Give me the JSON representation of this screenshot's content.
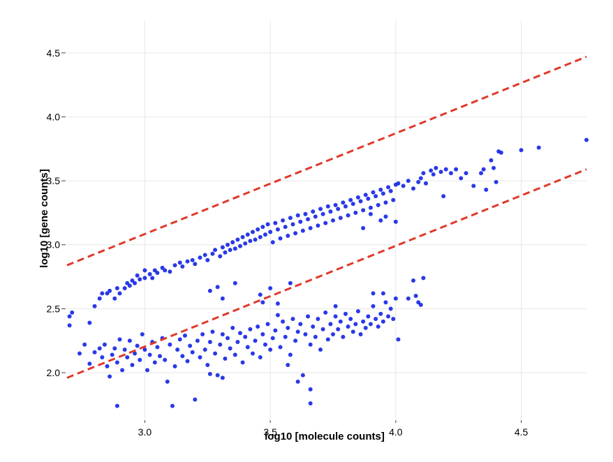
{
  "chart_data": {
    "type": "scatter",
    "title": "",
    "xlabel": "log10 [molecule counts]",
    "ylabel": "log10 [gene counts]",
    "xlim": [
      2.69,
      4.76
    ],
    "ylim": [
      1.64,
      4.75
    ],
    "xticks": [
      3.0,
      3.5,
      4.0,
      4.5
    ],
    "yticks": [
      2.0,
      2.5,
      3.0,
      3.5,
      4.0,
      4.5
    ],
    "xtick_labels": [
      "3.0",
      "3.5",
      "4.0",
      "4.5"
    ],
    "ytick_labels": [
      "2.0",
      "2.5",
      "3.0",
      "3.5",
      "4.0",
      "4.5"
    ],
    "grid": true,
    "legend": "none",
    "point_color": "#1f2ee6",
    "threshold_color": "#e0392b",
    "threshold_lines": [
      {
        "x": [
          2.69,
          4.76
        ],
        "y": [
          2.84,
          4.47
        ]
      },
      {
        "x": [
          2.69,
          4.76
        ],
        "y": [
          1.96,
          3.59
        ]
      }
    ],
    "series": [
      {
        "points_upper": [
          [
            2.7,
            2.44
          ],
          [
            2.71,
            2.47
          ],
          [
            2.78,
            2.39
          ],
          [
            2.8,
            2.52
          ],
          [
            2.82,
            2.58
          ],
          [
            2.83,
            2.62
          ],
          [
            2.85,
            2.62
          ],
          [
            2.86,
            2.64
          ],
          [
            2.88,
            2.58
          ],
          [
            2.89,
            2.66
          ],
          [
            2.9,
            2.62
          ],
          [
            2.92,
            2.66
          ],
          [
            2.93,
            2.7
          ],
          [
            2.94,
            2.68
          ],
          [
            2.95,
            2.72
          ],
          [
            2.96,
            2.7
          ],
          [
            2.97,
            2.76
          ],
          [
            2.98,
            2.73
          ],
          [
            3.0,
            2.74
          ],
          [
            3.0,
            2.8
          ],
          [
            3.02,
            2.77
          ],
          [
            3.03,
            2.74
          ],
          [
            3.04,
            2.8
          ],
          [
            3.05,
            2.78
          ],
          [
            3.07,
            2.82
          ],
          [
            3.08,
            2.8
          ],
          [
            3.1,
            2.79
          ],
          [
            3.12,
            2.84
          ],
          [
            3.14,
            2.86
          ],
          [
            3.15,
            2.83
          ],
          [
            3.17,
            2.87
          ],
          [
            3.19,
            2.88
          ],
          [
            3.2,
            2.85
          ],
          [
            3.22,
            2.9
          ],
          [
            3.24,
            2.92
          ],
          [
            3.25,
            2.88
          ],
          [
            3.27,
            2.93
          ],
          [
            3.28,
            2.96
          ],
          [
            3.3,
            2.91
          ],
          [
            3.31,
            2.98
          ],
          [
            3.32,
            2.94
          ],
          [
            3.33,
            3.0
          ],
          [
            3.34,
            2.96
          ],
          [
            3.35,
            3.02
          ],
          [
            3.36,
            2.97
          ],
          [
            3.37,
            3.04
          ],
          [
            3.38,
            2.99
          ],
          [
            3.39,
            3.06
          ],
          [
            3.4,
            3.01
          ],
          [
            3.41,
            3.08
          ],
          [
            3.42,
            3.03
          ],
          [
            3.43,
            3.1
          ],
          [
            3.44,
            3.04
          ],
          [
            3.45,
            3.12
          ],
          [
            3.46,
            3.06
          ],
          [
            3.47,
            3.14
          ],
          [
            3.48,
            3.08
          ],
          [
            3.49,
            3.16
          ],
          [
            3.5,
            3.1
          ],
          [
            3.51,
            3.02
          ],
          [
            3.52,
            3.17
          ],
          [
            3.53,
            3.12
          ],
          [
            3.54,
            3.05
          ],
          [
            3.55,
            3.19
          ],
          [
            3.56,
            3.14
          ],
          [
            3.57,
            3.07
          ],
          [
            3.58,
            3.21
          ],
          [
            3.59,
            3.16
          ],
          [
            3.6,
            3.09
          ],
          [
            3.61,
            3.23
          ],
          [
            3.62,
            3.18
          ],
          [
            3.63,
            3.11
          ],
          [
            3.64,
            3.24
          ],
          [
            3.65,
            3.2
          ],
          [
            3.66,
            3.13
          ],
          [
            3.67,
            3.26
          ],
          [
            3.68,
            3.22
          ],
          [
            3.69,
            3.15
          ],
          [
            3.7,
            3.28
          ],
          [
            3.71,
            3.24
          ],
          [
            3.72,
            3.17
          ],
          [
            3.73,
            3.3
          ],
          [
            3.74,
            3.26
          ],
          [
            3.75,
            3.19
          ],
          [
            3.76,
            3.31
          ],
          [
            3.77,
            3.28
          ],
          [
            3.78,
            3.21
          ],
          [
            3.79,
            3.33
          ],
          [
            3.8,
            3.3
          ],
          [
            3.81,
            3.23
          ],
          [
            3.82,
            3.35
          ],
          [
            3.83,
            3.32
          ],
          [
            3.84,
            3.25
          ],
          [
            3.85,
            3.37
          ],
          [
            3.86,
            3.34
          ],
          [
            3.87,
            3.27
          ],
          [
            3.88,
            3.39
          ],
          [
            3.89,
            3.36
          ],
          [
            3.9,
            3.29
          ],
          [
            3.91,
            3.41
          ],
          [
            3.92,
            3.38
          ],
          [
            3.93,
            3.31
          ],
          [
            3.94,
            3.43
          ],
          [
            3.95,
            3.4
          ],
          [
            3.96,
            3.33
          ],
          [
            3.97,
            3.45
          ],
          [
            3.98,
            3.42
          ],
          [
            3.99,
            3.35
          ],
          [
            4.0,
            3.47
          ],
          [
            4.01,
            3.48
          ],
          [
            4.0,
            3.18
          ],
          [
            3.96,
            3.22
          ],
          [
            4.03,
            3.46
          ],
          [
            4.05,
            3.5
          ],
          [
            4.07,
            3.44
          ],
          [
            4.09,
            3.49
          ],
          [
            4.1,
            3.52
          ],
          [
            4.11,
            3.56
          ],
          [
            4.12,
            3.48
          ],
          [
            4.14,
            3.58
          ],
          [
            4.15,
            3.55
          ],
          [
            4.16,
            3.6
          ],
          [
            4.18,
            3.57
          ],
          [
            4.2,
            3.59
          ],
          [
            4.22,
            3.56
          ],
          [
            4.24,
            3.59
          ],
          [
            4.26,
            3.52
          ],
          [
            4.28,
            3.56
          ],
          [
            4.19,
            3.38
          ],
          [
            4.31,
            3.46
          ],
          [
            4.34,
            3.56
          ],
          [
            4.35,
            3.59
          ],
          [
            4.38,
            3.66
          ],
          [
            4.39,
            3.6
          ],
          [
            4.41,
            3.73
          ],
          [
            4.42,
            3.72
          ],
          [
            4.4,
            3.49
          ],
          [
            4.36,
            3.43
          ],
          [
            4.5,
            3.74
          ],
          [
            4.57,
            3.76
          ],
          [
            4.76,
            3.82
          ],
          [
            3.94,
            3.19
          ],
          [
            3.9,
            3.24
          ],
          [
            3.87,
            3.13
          ],
          [
            3.58,
            2.7
          ],
          [
            3.5,
            2.66
          ],
          [
            3.46,
            2.61
          ],
          [
            3.31,
            2.58
          ],
          [
            3.26,
            2.64
          ],
          [
            3.36,
            2.7
          ]
        ]
      },
      {
        "points_lower": [
          [
            2.7,
            2.37
          ],
          [
            2.74,
            2.15
          ],
          [
            2.76,
            2.22
          ],
          [
            2.78,
            2.07
          ],
          [
            2.8,
            2.16
          ],
          [
            2.82,
            2.19
          ],
          [
            2.83,
            2.12
          ],
          [
            2.84,
            2.22
          ],
          [
            2.85,
            2.05
          ],
          [
            2.86,
            1.97
          ],
          [
            2.87,
            2.14
          ],
          [
            2.88,
            2.19
          ],
          [
            2.89,
            2.08
          ],
          [
            2.89,
            1.74
          ],
          [
            2.9,
            2.26
          ],
          [
            2.91,
            2.02
          ],
          [
            2.92,
            2.18
          ],
          [
            2.93,
            2.12
          ],
          [
            2.94,
            2.25
          ],
          [
            2.95,
            2.06
          ],
          [
            2.96,
            2.15
          ],
          [
            2.97,
            2.21
          ],
          [
            2.98,
            2.1
          ],
          [
            2.99,
            2.3
          ],
          [
            3.0,
            2.18
          ],
          [
            3.01,
            2.02
          ],
          [
            3.02,
            2.14
          ],
          [
            3.03,
            2.24
          ],
          [
            3.04,
            2.08
          ],
          [
            3.05,
            2.2
          ],
          [
            3.06,
            2.13
          ],
          [
            3.07,
            2.27
          ],
          [
            3.08,
            2.1
          ],
          [
            3.09,
            1.93
          ],
          [
            3.1,
            2.22
          ],
          [
            3.11,
            1.74
          ],
          [
            3.12,
            2.05
          ],
          [
            3.13,
            2.18
          ],
          [
            3.14,
            2.26
          ],
          [
            3.15,
            2.13
          ],
          [
            3.16,
            2.29
          ],
          [
            3.17,
            2.09
          ],
          [
            3.18,
            2.21
          ],
          [
            3.19,
            2.16
          ],
          [
            3.2,
            1.79
          ],
          [
            3.21,
            2.25
          ],
          [
            3.22,
            2.12
          ],
          [
            3.23,
            2.3
          ],
          [
            3.24,
            2.18
          ],
          [
            3.25,
            2.06
          ],
          [
            3.26,
            2.24
          ],
          [
            3.27,
            2.32
          ],
          [
            3.28,
            2.15
          ],
          [
            3.29,
            1.98
          ],
          [
            3.3,
            2.22
          ],
          [
            3.31,
            2.3
          ],
          [
            3.32,
            2.11
          ],
          [
            3.33,
            2.27
          ],
          [
            3.34,
            2.19
          ],
          [
            3.35,
            2.35
          ],
          [
            3.36,
            2.14
          ],
          [
            3.37,
            2.24
          ],
          [
            3.38,
            2.31
          ],
          [
            3.39,
            2.08
          ],
          [
            3.4,
            2.28
          ],
          [
            3.41,
            2.2
          ],
          [
            3.42,
            2.34
          ],
          [
            3.43,
            2.15
          ],
          [
            3.44,
            2.25
          ],
          [
            3.45,
            2.36
          ],
          [
            3.46,
            2.12
          ],
          [
            3.47,
            2.3
          ],
          [
            3.48,
            2.22
          ],
          [
            3.49,
            2.38
          ],
          [
            3.5,
            2.18
          ],
          [
            3.51,
            2.27
          ],
          [
            3.52,
            2.33
          ],
          [
            3.53,
            2.45
          ],
          [
            3.54,
            2.2
          ],
          [
            3.55,
            2.4
          ],
          [
            3.56,
            2.28
          ],
          [
            3.57,
            2.35
          ],
          [
            3.58,
            2.14
          ],
          [
            3.59,
            2.42
          ],
          [
            3.6,
            2.25
          ],
          [
            3.61,
            2.32
          ],
          [
            3.62,
            2.38
          ],
          [
            3.63,
            1.98
          ],
          [
            3.64,
            2.3
          ],
          [
            3.65,
            2.44
          ],
          [
            3.66,
            2.22
          ],
          [
            3.67,
            2.36
          ],
          [
            3.68,
            2.28
          ],
          [
            3.69,
            2.42
          ],
          [
            3.7,
            2.18
          ],
          [
            3.71,
            2.34
          ],
          [
            3.72,
            2.47
          ],
          [
            3.73,
            2.26
          ],
          [
            3.74,
            2.38
          ],
          [
            3.75,
            2.3
          ],
          [
            3.76,
            2.44
          ],
          [
            3.77,
            2.34
          ],
          [
            3.78,
            2.4
          ],
          [
            3.79,
            2.28
          ],
          [
            3.8,
            2.46
          ],
          [
            3.81,
            2.36
          ],
          [
            3.82,
            2.42
          ],
          [
            3.83,
            2.32
          ],
          [
            3.84,
            2.38
          ],
          [
            3.85,
            2.48
          ],
          [
            3.86,
            2.3
          ],
          [
            3.87,
            2.4
          ],
          [
            3.88,
            2.35
          ],
          [
            3.89,
            2.44
          ],
          [
            3.9,
            2.38
          ],
          [
            3.91,
            2.52
          ],
          [
            3.92,
            2.42
          ],
          [
            3.93,
            2.36
          ],
          [
            3.94,
            2.46
          ],
          [
            3.95,
            2.4
          ],
          [
            3.96,
            2.55
          ],
          [
            3.97,
            2.44
          ],
          [
            3.98,
            2.5
          ],
          [
            3.99,
            2.42
          ],
          [
            4.0,
            2.58
          ],
          [
            4.01,
            2.26
          ],
          [
            4.05,
            2.58
          ],
          [
            4.07,
            2.72
          ],
          [
            4.08,
            2.6
          ],
          [
            4.09,
            2.55
          ],
          [
            4.1,
            2.53
          ],
          [
            4.11,
            2.74
          ],
          [
            3.66,
            1.87
          ],
          [
            3.66,
            1.76
          ],
          [
            3.61,
            1.93
          ],
          [
            3.31,
            1.96
          ],
          [
            3.26,
            1.99
          ],
          [
            3.57,
            2.06
          ],
          [
            3.53,
            2.54
          ],
          [
            3.47,
            2.55
          ],
          [
            3.76,
            2.52
          ],
          [
            3.91,
            2.62
          ],
          [
            3.95,
            2.62
          ],
          [
            3.29,
            2.67
          ]
        ]
      }
    ]
  }
}
